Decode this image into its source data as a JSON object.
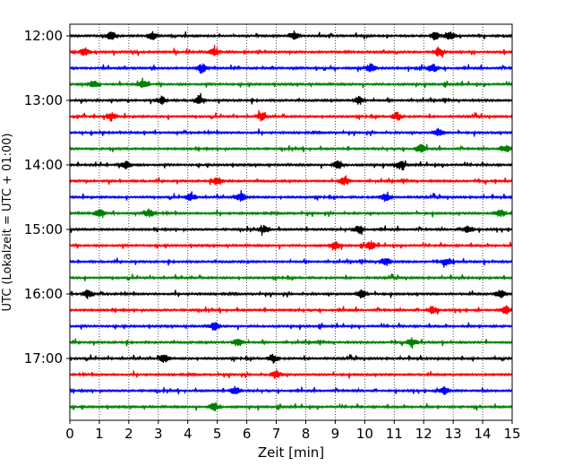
{
  "chart_data": {
    "type": "line",
    "subtype": "helicorder",
    "xlabel": "Zeit  [min]",
    "ylabel": "UTC (Lokalzeit = UTC + 01:00)",
    "xlim": [
      0,
      15
    ],
    "x_ticks": [
      0,
      1,
      2,
      3,
      4,
      5,
      6,
      7,
      8,
      9,
      10,
      11,
      12,
      13,
      14,
      15
    ],
    "y_tick_labels": [
      "12:00",
      "13:00",
      "14:00",
      "15:00",
      "16:00",
      "17:00"
    ],
    "grid": "vertical dotted lines at each minute",
    "trace_interval_minutes": 15,
    "traces": [
      {
        "start": "12:00",
        "color": "#000000",
        "events": [
          1.4,
          2.8,
          7.6,
          12.4,
          12.9
        ]
      },
      {
        "start": "12:15",
        "color": "#ff0000",
        "events": [
          0.5,
          4.9,
          12.5
        ]
      },
      {
        "start": "12:30",
        "color": "#0000ff",
        "events": [
          4.5,
          10.2,
          12.3
        ]
      },
      {
        "start": "12:45",
        "color": "#008000",
        "events": [
          0.8,
          2.5
        ]
      },
      {
        "start": "13:00",
        "color": "#000000",
        "events": [
          3.1,
          4.4,
          9.8
        ]
      },
      {
        "start": "13:15",
        "color": "#ff0000",
        "events": [
          1.4,
          6.5,
          11.1
        ]
      },
      {
        "start": "13:30",
        "color": "#0000ff",
        "events": [
          12.5
        ]
      },
      {
        "start": "13:45",
        "color": "#008000",
        "events": [
          11.9,
          14.8
        ]
      },
      {
        "start": "14:00",
        "color": "#000000",
        "events": [
          1.9,
          9.1,
          11.2
        ]
      },
      {
        "start": "14:15",
        "color": "#ff0000",
        "events": [
          5.0,
          9.3
        ]
      },
      {
        "start": "14:30",
        "color": "#0000ff",
        "events": [
          4.1,
          5.8,
          10.7
        ]
      },
      {
        "start": "14:45",
        "color": "#008000",
        "events": [
          1.0,
          2.7,
          14.6
        ]
      },
      {
        "start": "15:00",
        "color": "#000000",
        "events": [
          6.6,
          9.8,
          13.5
        ]
      },
      {
        "start": "15:15",
        "color": "#ff0000",
        "events": [
          9.0,
          10.2
        ]
      },
      {
        "start": "15:30",
        "color": "#0000ff",
        "events": [
          10.7,
          12.8
        ]
      },
      {
        "start": "15:45",
        "color": "#008000",
        "events": []
      },
      {
        "start": "16:00",
        "color": "#000000",
        "events": [
          0.6,
          9.9,
          14.6
        ]
      },
      {
        "start": "16:15",
        "color": "#ff0000",
        "events": [
          12.3,
          14.8
        ]
      },
      {
        "start": "16:30",
        "color": "#0000ff",
        "events": [
          4.9
        ]
      },
      {
        "start": "16:45",
        "color": "#008000",
        "events": [
          5.7,
          11.6
        ]
      },
      {
        "start": "17:00",
        "color": "#000000",
        "events": [
          3.2,
          6.9
        ]
      },
      {
        "start": "17:15",
        "color": "#ff0000",
        "events": [
          7.0
        ]
      },
      {
        "start": "17:30",
        "color": "#0000ff",
        "events": [
          5.6,
          12.7
        ]
      },
      {
        "start": "17:45",
        "color": "#008000",
        "events": [
          4.9
        ]
      }
    ]
  }
}
